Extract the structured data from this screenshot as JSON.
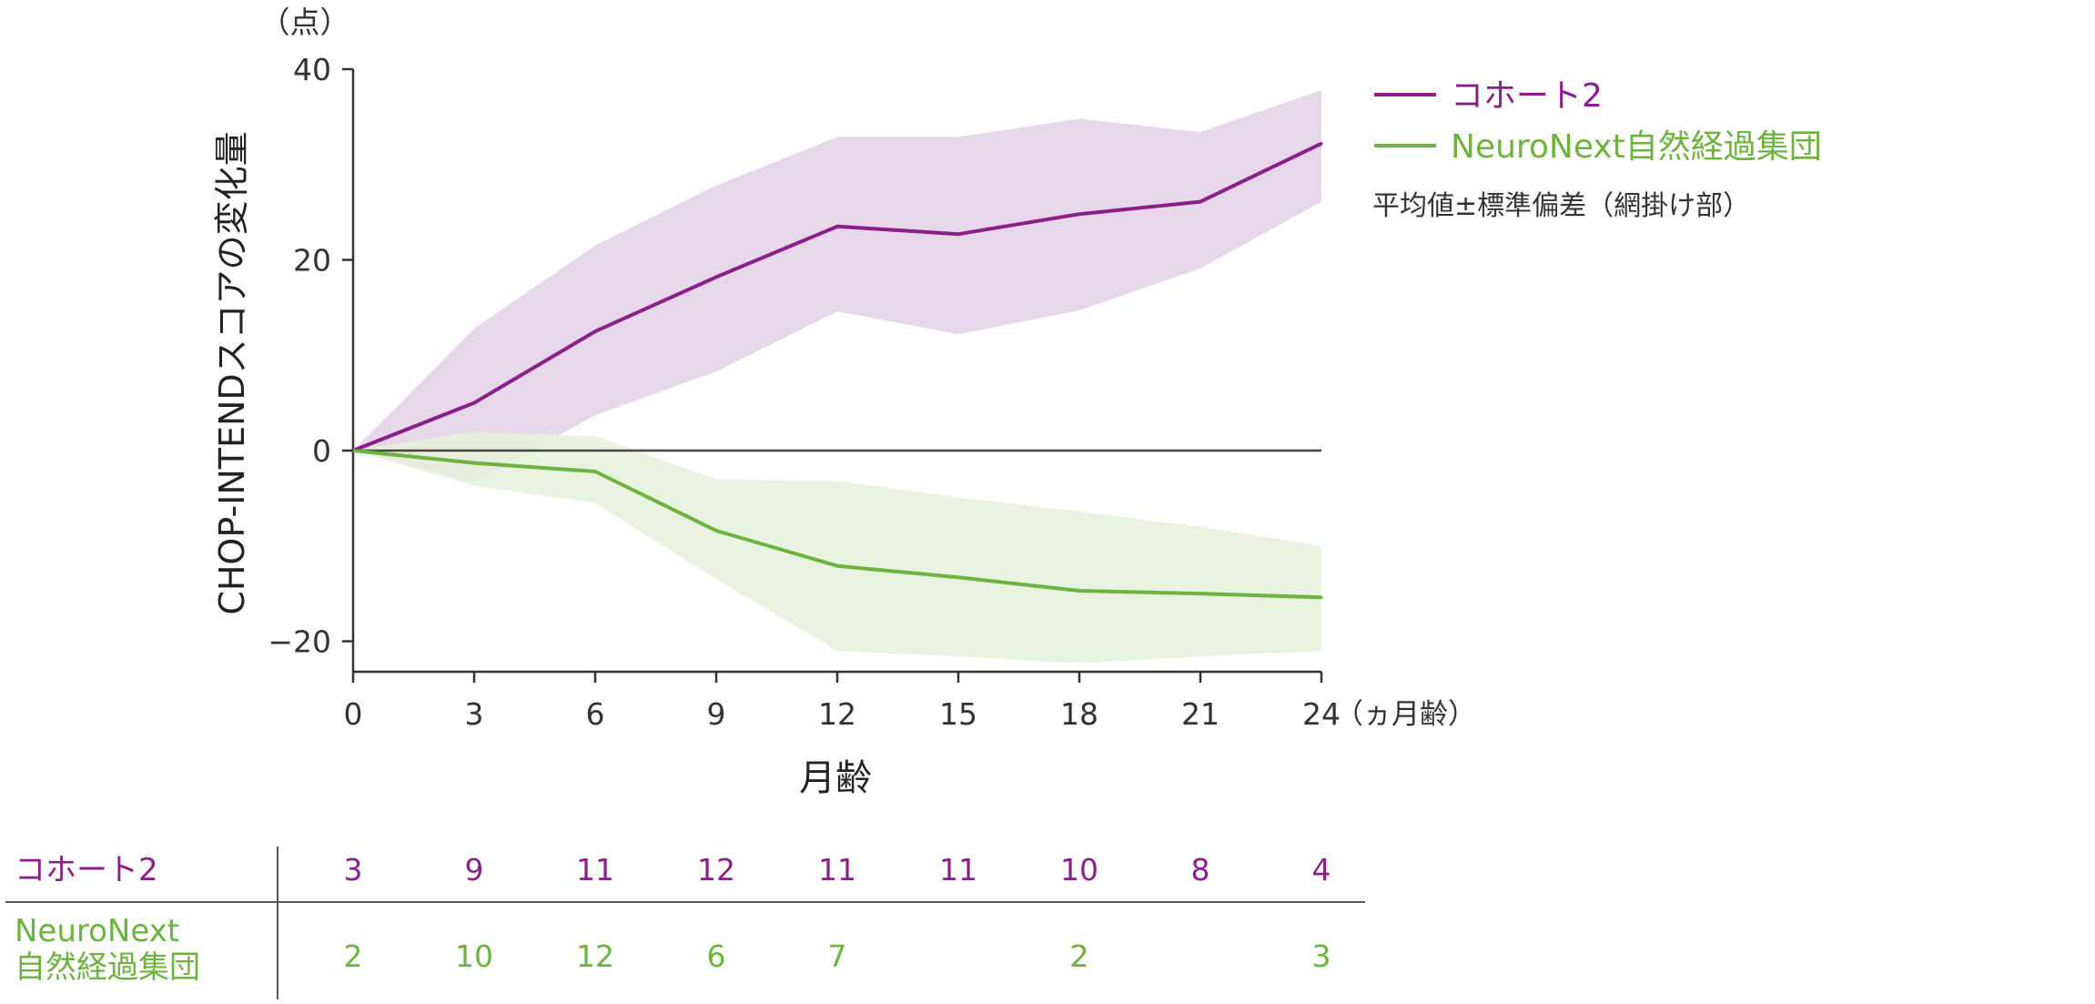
{
  "chart_data": {
    "type": "line",
    "y_unit_label": "（点）",
    "ylabel": "CHOP-INTENDスコアの変化量",
    "xlabel": "月齢",
    "x_unit_label": "（ヵ月齢）",
    "x": [
      0,
      3,
      6,
      9,
      12,
      15,
      18,
      21,
      24
    ],
    "xticks": [
      "0",
      "3",
      "6",
      "9",
      "12",
      "15",
      "18",
      "21",
      "24"
    ],
    "ylim": [
      -23,
      40
    ],
    "yticks": [
      40,
      20,
      0,
      -20
    ],
    "ytick_labels": [
      "40",
      "20",
      "0",
      "−20"
    ],
    "series": [
      {
        "name": "コホート2",
        "color": "#8a1f8a",
        "band_color": "#e6d7ea",
        "mean": [
          0,
          5,
          12.5,
          18.2,
          23.5,
          22.7,
          24.8,
          26.1,
          32.2
        ],
        "upper": [
          0,
          12.8,
          21.5,
          27.8,
          32.9,
          32.9,
          34.8,
          33.4,
          37.8
        ],
        "lower": [
          0,
          -3.3,
          3.7,
          8.3,
          14.6,
          12.2,
          14.7,
          19.1,
          26.1
        ]
      },
      {
        "name": "NeuroNext自然経過集団",
        "color": "#6cb33f",
        "band_color": "#e5f1db",
        "mean": [
          0,
          -1.3,
          -2.2,
          -8.4,
          -12.1,
          -13.3,
          -14.7,
          -15.0,
          -15.4
        ],
        "upper": [
          0,
          2.0,
          1.5,
          -3.0,
          -3.2,
          -4.9,
          -6.4,
          -8.0,
          -10.0
        ],
        "lower": [
          0,
          -3.7,
          -5.5,
          -13.5,
          -21.0,
          -21.6,
          -22.3,
          -21.6,
          -21.0
        ]
      }
    ],
    "legend_note": "平均値±標準偏差（網掛け部）",
    "legend_position": "top-right",
    "n_table": [
      {
        "label_lines": [
          "コホート2"
        ],
        "counts": [
          "3",
          "9",
          "11",
          "12",
          "11",
          "11",
          "10",
          "8",
          "4"
        ]
      },
      {
        "label_lines": [
          "NeuroNext",
          "自然経過集団"
        ],
        "counts": [
          "2",
          "10",
          "12",
          "6",
          "7",
          "",
          "2",
          "",
          "3"
        ]
      }
    ]
  }
}
